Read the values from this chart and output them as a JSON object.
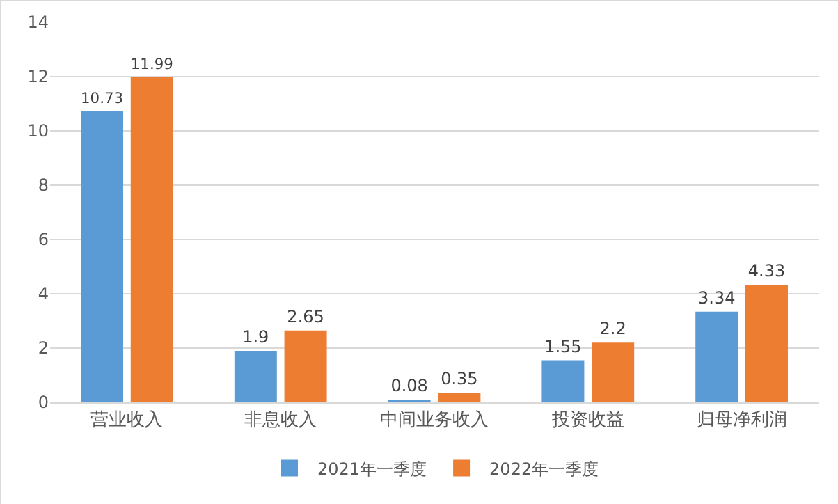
{
  "chart_data": {
    "type": "bar",
    "categories": [
      "营业收入",
      "非息收入",
      "中间业务收入",
      "投资收益",
      "归母净利润"
    ],
    "series": [
      {
        "name": "2021年一季度",
        "color": "#5b9bd5",
        "values": [
          10.73,
          1.9,
          0.08,
          1.55,
          3.34
        ]
      },
      {
        "name": "2022年一季度",
        "color": "#ed7d31",
        "values": [
          11.99,
          2.65,
          0.35,
          2.2,
          4.33
        ]
      }
    ],
    "ylim": [
      0,
      14
    ],
    "yticks": [
      0,
      2,
      4,
      6,
      8,
      10,
      12,
      14
    ],
    "grid": "y",
    "legend": "bottom",
    "data_labels": true
  }
}
